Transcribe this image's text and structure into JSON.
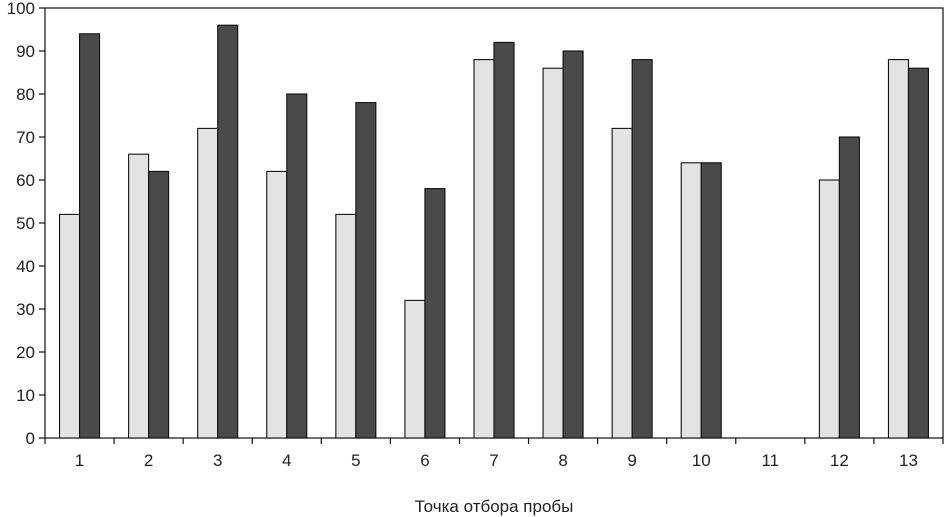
{
  "chart_data": {
    "type": "bar",
    "title": "",
    "xlabel": "Точка отбора пробы",
    "ylabel": "",
    "ylim": [
      0,
      100
    ],
    "yticks": [
      0,
      10,
      20,
      30,
      40,
      50,
      60,
      70,
      80,
      90,
      100
    ],
    "grid": false,
    "categories": [
      "1",
      "2",
      "3",
      "4",
      "5",
      "6",
      "7",
      "8",
      "9",
      "10",
      "11",
      "12",
      "13"
    ],
    "series": [
      {
        "color": "#e3e3e3",
        "values": [
          52,
          66,
          72,
          62,
          52,
          32,
          88,
          86,
          72,
          64,
          null,
          60,
          88
        ]
      },
      {
        "color": "#4a4a4a",
        "values": [
          94,
          62,
          96,
          80,
          78,
          58,
          92,
          90,
          88,
          64,
          null,
          70,
          86
        ]
      }
    ]
  }
}
